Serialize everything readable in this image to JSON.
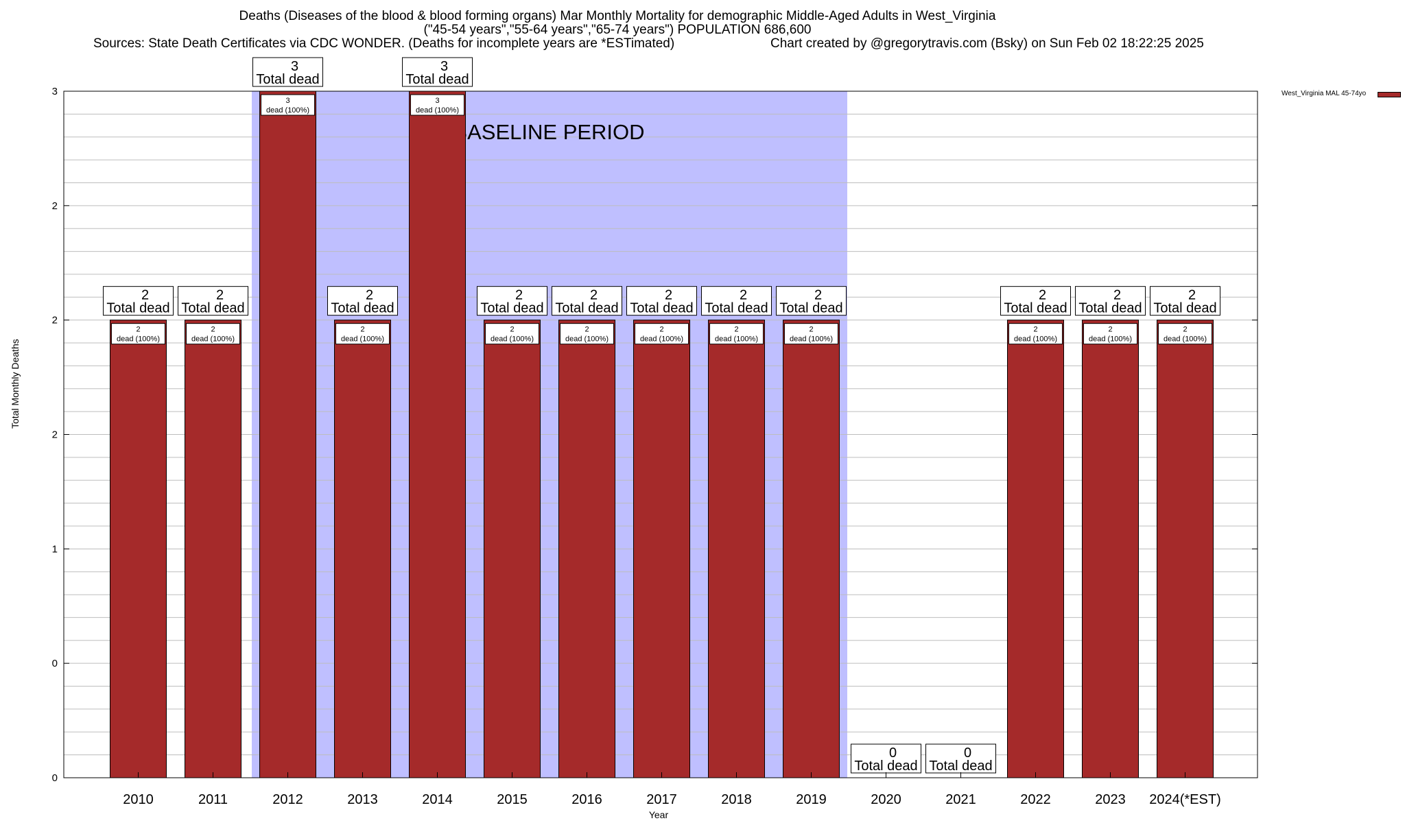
{
  "chart_data": {
    "type": "bar",
    "title": "Deaths (Diseases of the blood & blood forming organs) Mar Monthly Mortality for demographic Middle-Aged Adults in West_Virginia",
    "subtitle": "(\"45-54 years\",\"55-64 years\",\"65-74 years\") POPULATION 686,600",
    "sources": "Sources: State Death Certificates via CDC WONDER. (Deaths for incomplete years are *ESTimated)",
    "credit": "Chart created by @gregorytravis.com (Bsky) on Sun Feb 02 18:22:25 2025",
    "xlabel": "Year",
    "ylabel": "Total Monthly Deaths",
    "ylim": [
      0,
      3
    ],
    "yticks": [
      "0",
      "0",
      "1",
      "2",
      "2",
      "2",
      "3"
    ],
    "grid": true,
    "legend": {
      "label": "West_Virginia MAL 45-74yo",
      "placement": "top-right",
      "color": "#a52a2a"
    },
    "baseline": {
      "label": "BASELINE PERIOD",
      "start": "2012",
      "end": "2019",
      "color": "#bfbfff"
    },
    "bar_color": "#a52a2a",
    "categories": [
      "2010",
      "2011",
      "2012",
      "2013",
      "2014",
      "2015",
      "2016",
      "2017",
      "2018",
      "2019",
      "2020",
      "2021",
      "2022",
      "2023",
      "2024(*EST)"
    ],
    "values": [
      2,
      2,
      3,
      2,
      3,
      2,
      2,
      2,
      2,
      2,
      0,
      0,
      2,
      2,
      2
    ],
    "total_labels": [
      "2",
      "2",
      "3",
      "2",
      "3",
      "2",
      "2",
      "2",
      "2",
      "2",
      "0",
      "0",
      "2",
      "2",
      "2"
    ],
    "total_suffix": "Total dead",
    "inner_labels": [
      "2",
      "2",
      "3",
      "2",
      "3",
      "2",
      "2",
      "2",
      "2",
      "2",
      "",
      "",
      "2",
      "2",
      "2"
    ],
    "inner_suffix": "dead (100%)"
  }
}
